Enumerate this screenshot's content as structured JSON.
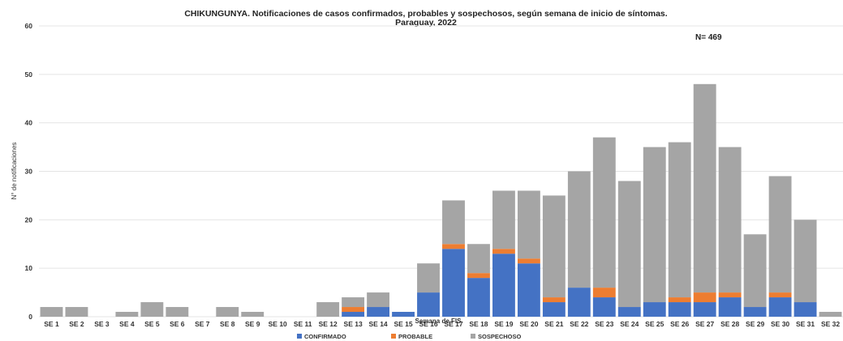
{
  "chart_data": {
    "type": "bar",
    "stacked": true,
    "title": "CHIKUNGUNYA. Notificaciones de casos confirmados, probables y sospechosos, según semana de inicio de síntomas.",
    "subtitle": "Paraguay, 2022",
    "annotation": "N= 469",
    "xlabel": "Semana de FIS",
    "ylabel": "N° de notificaciones",
    "ylim": [
      0,
      60
    ],
    "yticks": [
      0,
      10,
      20,
      30,
      40,
      50,
      60
    ],
    "grid": true,
    "legend_position": "bottom",
    "categories": [
      "SE 1",
      "SE 2",
      "SE 3",
      "SE 4",
      "SE 5",
      "SE 6",
      "SE 7",
      "SE 8",
      "SE 9",
      "SE 10",
      "SE 11",
      "SE 12",
      "SE 13",
      "SE 14",
      "SE 15",
      "SE 16",
      "SE 17",
      "SE 18",
      "SE 19",
      "SE 20",
      "SE 21",
      "SE 22",
      "SE 23",
      "SE 24",
      "SE 25",
      "SE 26",
      "SE 27",
      "SE 28",
      "SE 29",
      "SE 30",
      "SE 31",
      "SE 32"
    ],
    "series": [
      {
        "name": "CONFIRMADO",
        "color": "#4472C4",
        "values": [
          0,
          0,
          0,
          0,
          0,
          0,
          0,
          0,
          0,
          0,
          0,
          0,
          1,
          2,
          1,
          5,
          14,
          8,
          13,
          11,
          3,
          6,
          4,
          2,
          3,
          3,
          3,
          4,
          2,
          4,
          3,
          0
        ]
      },
      {
        "name": "PROBABLE",
        "color": "#ED7D31",
        "values": [
          0,
          0,
          0,
          0,
          0,
          0,
          0,
          0,
          0,
          0,
          0,
          0,
          1,
          0,
          0,
          0,
          1,
          1,
          1,
          1,
          1,
          0,
          2,
          0,
          0,
          1,
          2,
          1,
          0,
          1,
          0,
          0
        ]
      },
      {
        "name": "SOSPECHOSO",
        "color": "#A5A5A5",
        "values": [
          2,
          2,
          0,
          1,
          3,
          2,
          0,
          2,
          1,
          0,
          0,
          3,
          2,
          3,
          0,
          6,
          9,
          6,
          12,
          14,
          21,
          24,
          31,
          26,
          32,
          32,
          43,
          30,
          15,
          24,
          17,
          1
        ]
      }
    ]
  }
}
